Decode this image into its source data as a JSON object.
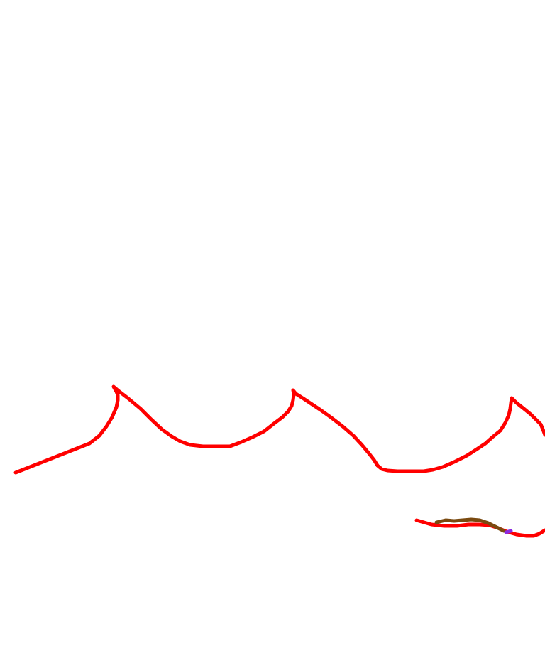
{
  "canvas": {
    "background": "#ffffff"
  },
  "strokes": [
    {
      "name": "red-wave-stroke",
      "color": "#ff0000"
    },
    {
      "name": "red-lower-stroke",
      "color": "#ff0000"
    },
    {
      "name": "brown-lower-stroke",
      "color": "#7a4a10"
    },
    {
      "name": "purple-dot-stroke",
      "color": "#8a2be2"
    }
  ]
}
